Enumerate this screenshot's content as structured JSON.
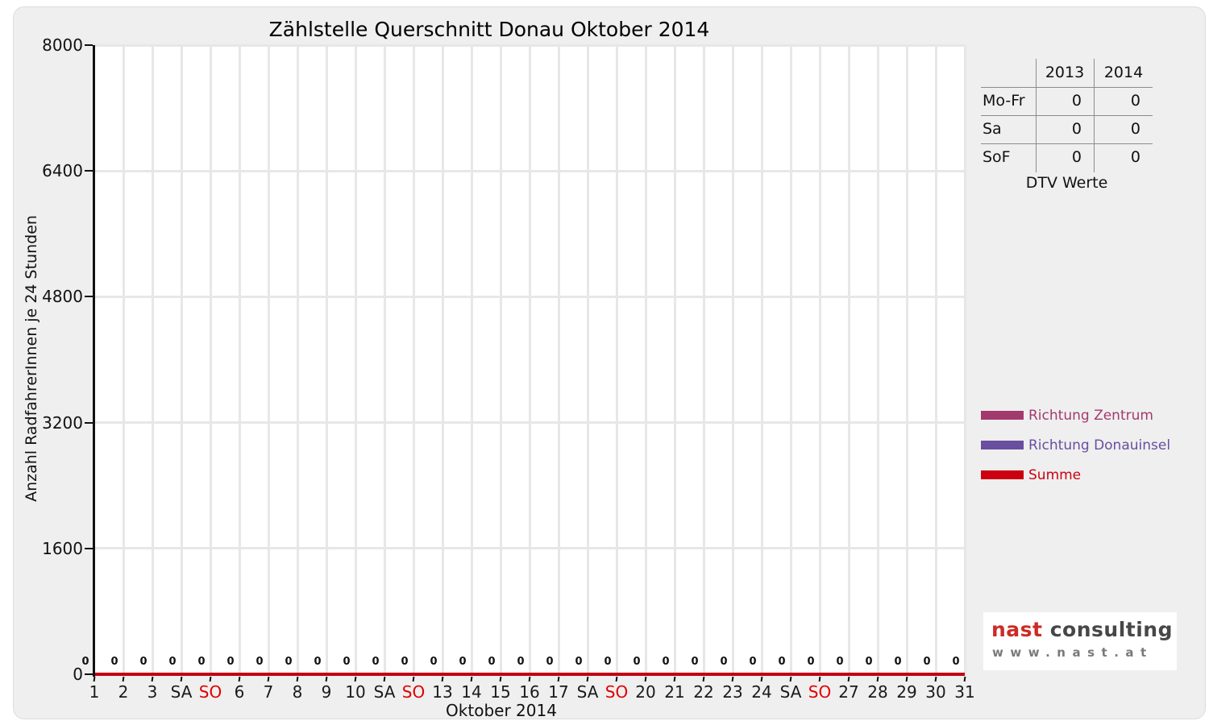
{
  "title": "Zählstelle Querschnitt Donau Oktober 2014",
  "axes": {
    "x_label": "Oktober 2014",
    "y_label": "Anzahl RadfahrerInnen je 24 Stunden"
  },
  "chart_data": {
    "type": "line",
    "title": "Zählstelle Querschnitt Donau Oktober 2014",
    "xlabel": "Oktober 2014",
    "ylabel": "Anzahl RadfahrerInnen je 24 Stunden",
    "ylim": [
      0,
      8000
    ],
    "y_ticks": [
      0,
      1600,
      3200,
      4800,
      6400,
      8000
    ],
    "grid": true,
    "legend_position": "right",
    "x_tick_labels": [
      "1",
      "2",
      "3",
      "SA",
      "SO",
      "6",
      "7",
      "8",
      "9",
      "10",
      "SA",
      "SO",
      "13",
      "14",
      "15",
      "16",
      "17",
      "SA",
      "SO",
      "20",
      "21",
      "22",
      "23",
      "24",
      "SA",
      "SO",
      "27",
      "28",
      "29",
      "30",
      "31"
    ],
    "sunday_label": "SO",
    "sunday_color": "#e00000",
    "point_labels": [
      "0",
      "0",
      "0",
      "0",
      "0",
      "0",
      "0",
      "0",
      "0",
      "0",
      "0",
      "0",
      "0",
      "0",
      "0",
      "0",
      "0",
      "0",
      "0",
      "0",
      "0",
      "0",
      "0",
      "0",
      "0",
      "0",
      "0",
      "0",
      "0",
      "0",
      "0"
    ],
    "series": [
      {
        "name": "Richtung Zentrum",
        "color": "#a33a6e",
        "values": [
          0,
          0,
          0,
          0,
          0,
          0,
          0,
          0,
          0,
          0,
          0,
          0,
          0,
          0,
          0,
          0,
          0,
          0,
          0,
          0,
          0,
          0,
          0,
          0,
          0,
          0,
          0,
          0,
          0,
          0,
          0
        ]
      },
      {
        "name": "Richtung Donauinsel",
        "color": "#6a4ea0",
        "values": [
          0,
          0,
          0,
          0,
          0,
          0,
          0,
          0,
          0,
          0,
          0,
          0,
          0,
          0,
          0,
          0,
          0,
          0,
          0,
          0,
          0,
          0,
          0,
          0,
          0,
          0,
          0,
          0,
          0,
          0,
          0
        ]
      },
      {
        "name": "Summe",
        "color": "#cc0011",
        "values": [
          0,
          0,
          0,
          0,
          0,
          0,
          0,
          0,
          0,
          0,
          0,
          0,
          0,
          0,
          0,
          0,
          0,
          0,
          0,
          0,
          0,
          0,
          0,
          0,
          0,
          0,
          0,
          0,
          0,
          0,
          0
        ]
      }
    ]
  },
  "summary_table": {
    "columns": [
      "2013",
      "2014"
    ],
    "rows": [
      {
        "label": "Mo-Fr",
        "values": [
          "0",
          "0"
        ]
      },
      {
        "label": "Sa",
        "values": [
          "0",
          "0"
        ]
      },
      {
        "label": "SoF",
        "values": [
          "0",
          "0"
        ]
      }
    ],
    "caption": "DTV Werte"
  },
  "legend": {
    "items": [
      {
        "label": "Richtung Zentrum",
        "color": "#a33a6e"
      },
      {
        "label": "Richtung Donauinsel",
        "color": "#6a4ea0"
      },
      {
        "label": "Summe",
        "color": "#cc0011"
      }
    ]
  },
  "logo": {
    "brand": "nast",
    "suffix": "consulting",
    "url": "www.nast.at"
  },
  "colors": {
    "panel_bg": "#efefef",
    "plot_bg": "#ffffff",
    "grid": "#e7e7e7",
    "axis": "#111111",
    "zero_line": "#c10013",
    "table_line": "#8c8c8c"
  }
}
